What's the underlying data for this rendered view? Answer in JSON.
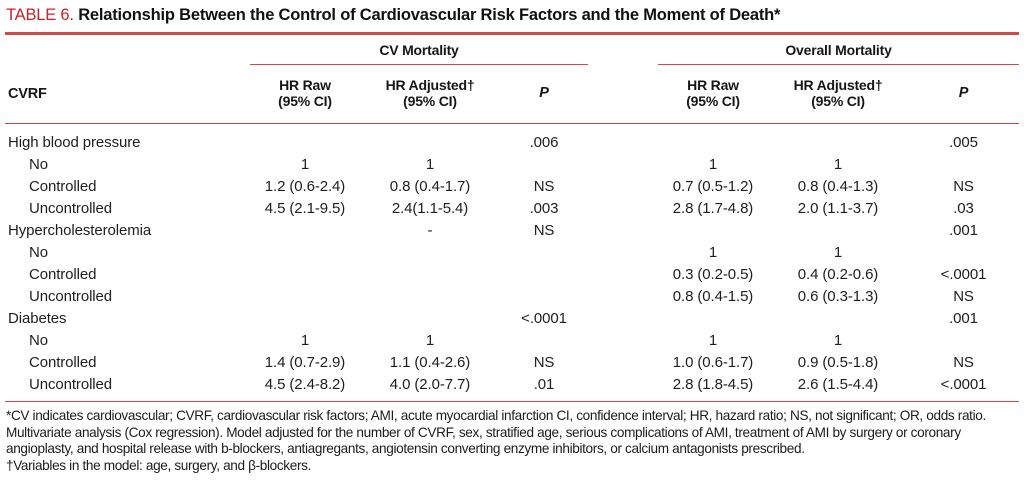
{
  "title": {
    "prefix": "TABLE 6.",
    "text": "Relationship Between the Control of Cardiovascular Risk Factors and the Moment of Death*"
  },
  "colors": {
    "accent_red_line": "#cf4a4c",
    "title_red": "#cc2229",
    "text": "#1b1b1b"
  },
  "table": {
    "corner_label": "CVRF",
    "groups": [
      {
        "label": "CV Mortality",
        "columns": [
          "HR Raw\n(95% CI)",
          "HR Adjusted†\n(95% CI)",
          "P"
        ]
      },
      {
        "label": "Overall Mortality",
        "columns": [
          "HR Raw\n(95% CI)",
          "HR Adjusted†\n(95% CI)",
          "P"
        ]
      }
    ],
    "rows": [
      {
        "label": "High blood pressure",
        "cells": [
          "",
          "",
          ".006",
          "",
          "",
          ".005"
        ]
      },
      {
        "label": "No",
        "cells": [
          "1",
          "1",
          "",
          "1",
          "1",
          ""
        ]
      },
      {
        "label": "Controlled",
        "cells": [
          "1.2 (0.6-2.4)",
          "0.8 (0.4-1.7)",
          "NS",
          "0.7 (0.5-1.2)",
          "0.8 (0.4-1.3)",
          "NS"
        ]
      },
      {
        "label": "Uncontrolled",
        "cells": [
          "4.5 (2.1-9.5)",
          "2.4(1.1-5.4)",
          ".003",
          "2.8 (1.7-4.8)",
          "2.0 (1.1-3.7)",
          ".03"
        ]
      },
      {
        "label": "Hypercholesterolemia",
        "cells": [
          "",
          "-",
          "NS",
          "",
          "",
          ".001"
        ]
      },
      {
        "label": "No",
        "cells": [
          "",
          "",
          "",
          "1",
          "1",
          ""
        ]
      },
      {
        "label": "Controlled",
        "cells": [
          "",
          "",
          "",
          "0.3 (0.2-0.5)",
          "0.4 (0.2-0.6)",
          "<.0001"
        ]
      },
      {
        "label": "Uncontrolled",
        "cells": [
          "",
          "",
          "",
          "0.8 (0.4-1.5)",
          "0.6 (0.3-1.3)",
          "NS"
        ]
      },
      {
        "label": "Diabetes",
        "cells": [
          "",
          "",
          "<.0001",
          "",
          "",
          ".001"
        ]
      },
      {
        "label": "No",
        "cells": [
          "1",
          "1",
          "",
          "1",
          "1",
          ""
        ]
      },
      {
        "label": "Controlled",
        "cells": [
          "1.4 (0.7-2.9)",
          "1.1 (0.4-2.6)",
          "NS",
          "1.0 (0.6-1.7)",
          "0.9 (0.5-1.8)",
          "NS"
        ]
      },
      {
        "label": "Uncontrolled",
        "cells": [
          "4.5 (2.4-8.2)",
          "4.0 (2.0-7.7)",
          ".01",
          "2.8 (1.8-4.5)",
          "2.6 (1.5-4.4)",
          "<.0001"
        ]
      }
    ]
  },
  "footnotes": [
    "*CV indicates cardiovascular; CVRF, cardiovascular risk factors; AMI, acute myocardial infarction CI, confidence interval; HR, hazard ratio; NS, not significant; OR, odds ratio.",
    "Multivariate analysis (Cox regression). Model adjusted for the number of CVRF, sex, stratified age, serious complications of AMI, treatment of AMI by surgery or coronary angioplasty, and hospital release with b-blockers, antiagregants, angiotensin converting enzyme inhibitors, or calcium antagonists prescribed.",
    "†Variables in the model: age, surgery, and β-blockers."
  ]
}
